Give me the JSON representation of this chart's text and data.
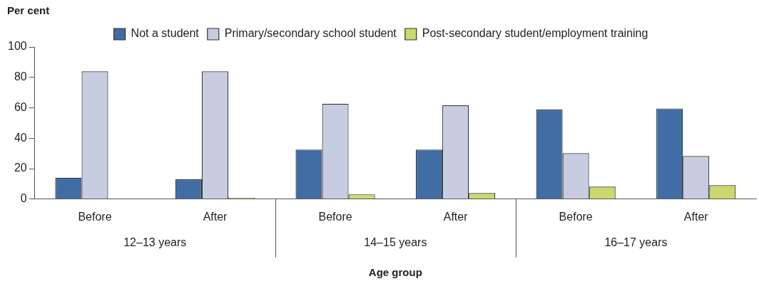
{
  "chart_data": {
    "type": "bar",
    "ylabel": "Per cent",
    "xlabel": "Age group",
    "categories": [
      "Before",
      "After",
      "Before",
      "After",
      "Before",
      "After"
    ],
    "annotations": [
      "12–13 years",
      "14–15 years",
      "16–17 years"
    ],
    "series": [
      {
        "name": "Not a student",
        "color": "#406da4",
        "values": [
          14,
          13,
          32.5,
          32.5,
          58.8,
          59.6
        ]
      },
      {
        "name": "Primary/secondary school student",
        "color": "#c8cce0",
        "values": [
          84,
          84,
          62.7,
          61.6,
          30.2,
          28.3
        ]
      },
      {
        "name": "Post-secondary student/employment training",
        "color": "#ccd86c",
        "values": [
          0,
          1,
          3.1,
          4,
          8.2,
          9.1
        ]
      }
    ],
    "ylim": [
      0,
      100
    ],
    "yticks": [
      0,
      20,
      40,
      60,
      80,
      100
    ],
    "grid": false,
    "legend": "top"
  }
}
